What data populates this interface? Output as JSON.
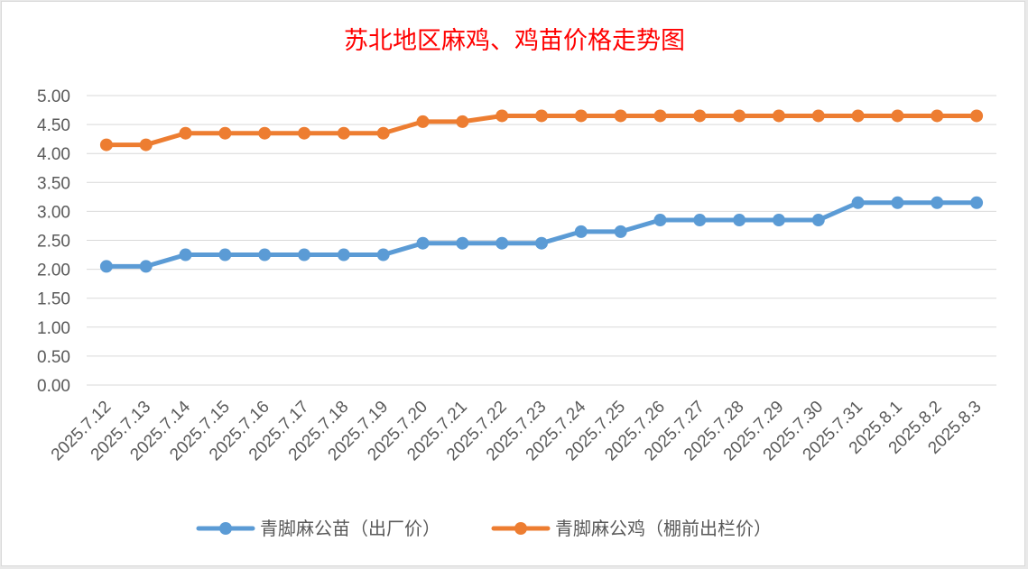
{
  "chart_data": {
    "type": "line",
    "title": "苏北地区麻鸡、鸡苗价格走势图",
    "xlabel": "",
    "ylabel": "",
    "categories": [
      "2025.7.12",
      "2025.7.13",
      "2025.7.14",
      "2025.7.15",
      "2025.7.16",
      "2025.7.17",
      "2025.7.18",
      "2025.7.19",
      "2025.7.20",
      "2025.7.21",
      "2025.7.22",
      "2025.7.23",
      "2025.7.24",
      "2025.7.25",
      "2025.7.26",
      "2025.7.27",
      "2025.7.28",
      "2025.7.29",
      "2025.7.30",
      "2025.7.31",
      "2025.8.1",
      "2025.8.2",
      "2025.8.3"
    ],
    "ylim": [
      0,
      5
    ],
    "yticks": [
      "0.00",
      "0.50",
      "1.00",
      "1.50",
      "2.00",
      "2.50",
      "3.00",
      "3.50",
      "4.00",
      "4.50",
      "5.00"
    ],
    "grid": true,
    "legend_position": "bottom",
    "series": [
      {
        "name": "青脚麻公苗（出厂价）",
        "color": "#5b9bd5",
        "values": [
          2.05,
          2.05,
          2.25,
          2.25,
          2.25,
          2.25,
          2.25,
          2.25,
          2.45,
          2.45,
          2.45,
          2.45,
          2.65,
          2.65,
          2.85,
          2.85,
          2.85,
          2.85,
          2.85,
          3.15,
          3.15,
          3.15,
          3.15
        ]
      },
      {
        "name": "青脚麻公鸡（棚前出栏价）",
        "color": "#ed7d31",
        "values": [
          4.15,
          4.15,
          4.35,
          4.35,
          4.35,
          4.35,
          4.35,
          4.35,
          4.55,
          4.55,
          4.65,
          4.65,
          4.65,
          4.65,
          4.65,
          4.65,
          4.65,
          4.65,
          4.65,
          4.65,
          4.65,
          4.65,
          4.65
        ]
      }
    ]
  }
}
